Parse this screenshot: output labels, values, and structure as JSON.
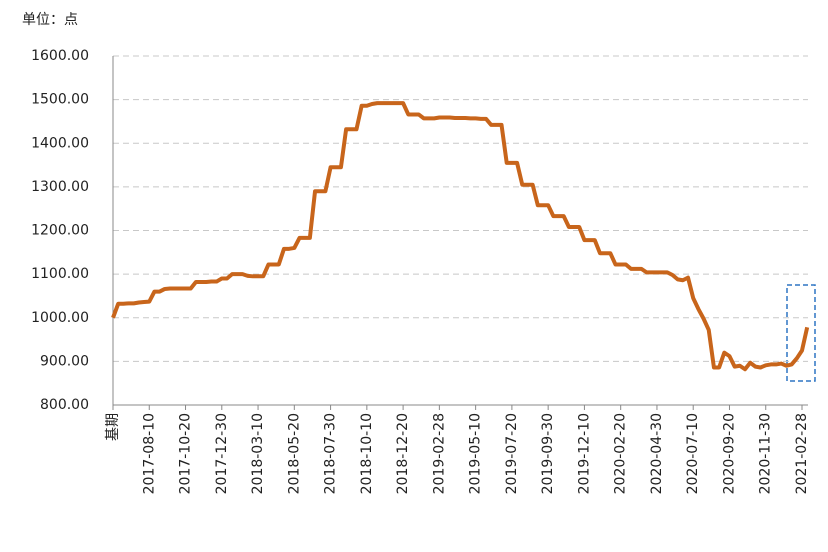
{
  "chart_data": {
    "type": "line",
    "unit_label": "单位：点",
    "color": "#c8651b",
    "grid": true,
    "ylim": [
      800,
      1600
    ],
    "yticks": [
      {
        "value": 800,
        "label": "800.00"
      },
      {
        "value": 900,
        "label": "900.00"
      },
      {
        "value": 1000,
        "label": "1000.00"
      },
      {
        "value": 1100,
        "label": "1100.00"
      },
      {
        "value": 1200,
        "label": "1200.00"
      },
      {
        "value": 1300,
        "label": "1300.00"
      },
      {
        "value": 1400,
        "label": "1400.00"
      },
      {
        "value": 1500,
        "label": "1500.00"
      },
      {
        "value": 1600,
        "label": "1600.00"
      }
    ],
    "categories": [
      "基期",
      null,
      null,
      null,
      null,
      null,
      null,
      "2017-08-10",
      null,
      null,
      null,
      null,
      null,
      null,
      "2017-10-20",
      null,
      null,
      null,
      null,
      null,
      null,
      "2017-12-30",
      null,
      null,
      null,
      null,
      null,
      null,
      "2018-03-10",
      null,
      null,
      null,
      null,
      null,
      null,
      "2018-05-20",
      null,
      null,
      null,
      null,
      null,
      null,
      "2018-07-30",
      null,
      null,
      null,
      null,
      null,
      null,
      "2018-10-10",
      null,
      null,
      null,
      null,
      null,
      null,
      "2018-12-20",
      null,
      null,
      null,
      null,
      null,
      null,
      "2019-02-28",
      null,
      null,
      null,
      null,
      null,
      null,
      "2019-05-10",
      null,
      null,
      null,
      null,
      null,
      null,
      "2019-07-20",
      null,
      null,
      null,
      null,
      null,
      null,
      "2019-09-30",
      null,
      null,
      null,
      null,
      null,
      null,
      "2019-12-10",
      null,
      null,
      null,
      null,
      null,
      null,
      "2020-02-20",
      null,
      null,
      null,
      null,
      null,
      null,
      "2020-04-30",
      null,
      null,
      null,
      null,
      null,
      null,
      "2020-07-10",
      null,
      null,
      null,
      null,
      null,
      null,
      "2020-09-20",
      null,
      null,
      null,
      null,
      null,
      null,
      "2020-11-30",
      null,
      null,
      null,
      null,
      null,
      null,
      "2021-02-28",
      null
    ],
    "values": [
      1000,
      1032,
      1032,
      1033,
      1033,
      1035,
      1036,
      1037,
      1060,
      1060,
      1066,
      1067,
      1067,
      1067,
      1067,
      1067,
      1082,
      1082,
      1082,
      1083,
      1083,
      1090,
      1090,
      1100,
      1100,
      1100,
      1096,
      1095,
      1095,
      1095,
      1122,
      1122,
      1122,
      1158,
      1158,
      1160,
      1183,
      1183,
      1183,
      1290,
      1290,
      1290,
      1345,
      1345,
      1345,
      1432,
      1432,
      1432,
      1486,
      1486,
      1490,
      1492,
      1492,
      1492,
      1492,
      1492,
      1492,
      1466,
      1466,
      1466,
      1457,
      1457,
      1457,
      1459,
      1459,
      1459,
      1458,
      1458,
      1458,
      1457,
      1457,
      1456,
      1456,
      1442,
      1442,
      1442,
      1355,
      1355,
      1355,
      1305,
      1305,
      1305,
      1258,
      1258,
      1258,
      1233,
      1233,
      1233,
      1208,
      1208,
      1208,
      1178,
      1178,
      1178,
      1148,
      1148,
      1148,
      1122,
      1122,
      1122,
      1112,
      1112,
      1112,
      1104,
      1104,
      1104,
      1104,
      1104,
      1098,
      1088,
      1086,
      1092,
      1045,
      1020,
      998,
      972,
      886,
      886,
      920,
      912,
      888,
      890,
      882,
      897,
      888,
      886,
      891,
      893,
      893,
      895,
      890,
      893,
      907,
      925,
      978
    ]
  }
}
